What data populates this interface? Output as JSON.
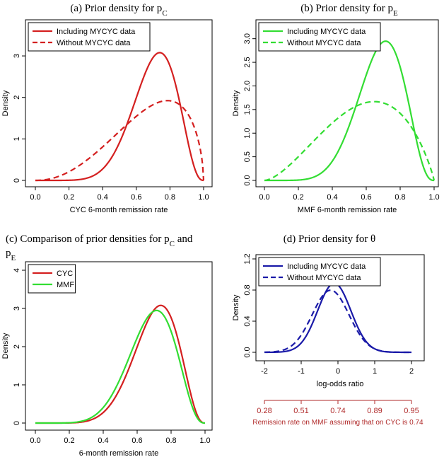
{
  "chart_data": [
    {
      "id": "a",
      "type": "line",
      "title": "(a) Prior density for p",
      "title_sub": "C",
      "title_after": "",
      "xlabel": "CYC 6-month remission rate",
      "ylabel": "Density",
      "xlim": [
        0,
        1
      ],
      "ylim": [
        0,
        3.7
      ],
      "x_ticks": [
        0.0,
        0.2,
        0.4,
        0.6,
        0.8,
        1.0
      ],
      "x_tick_labels": [
        "0.0",
        "0.2",
        "0.4",
        "0.6",
        "0.8",
        "1.0"
      ],
      "y_ticks": [
        0,
        1,
        2,
        3
      ],
      "y_tick_labels": [
        "0",
        "1",
        "2",
        "3"
      ],
      "legend_position": "top-left",
      "series": [
        {
          "name": "Including MYCYC data",
          "color": "#d42020",
          "dash": "solid",
          "curve": "beta",
          "a": 8.54,
          "b": 3.66
        },
        {
          "name": "Without MYCYC data",
          "color": "#d42020",
          "dash": "dashed",
          "curve": "beta",
          "a": 3.2,
          "b": 1.6
        }
      ]
    },
    {
      "id": "b",
      "type": "line",
      "title": "(b) Prior density for p",
      "title_sub": "E",
      "title_after": "",
      "xlabel": "MMF 6-month remission rate",
      "ylabel": "Density",
      "xlim": [
        0,
        1
      ],
      "ylim": [
        0,
        3.25
      ],
      "x_ticks": [
        0.0,
        0.2,
        0.4,
        0.6,
        0.8,
        1.0
      ],
      "x_tick_labels": [
        "0.0",
        "0.2",
        "0.4",
        "0.6",
        "0.8",
        "1.0"
      ],
      "y_ticks": [
        0.0,
        0.5,
        1.0,
        1.5,
        2.0,
        2.5,
        3.0
      ],
      "y_tick_labels": [
        "0.0",
        "0.5",
        "1.0",
        "1.5",
        "2.0",
        "2.5",
        "3.0"
      ],
      "legend_position": "top-left",
      "series": [
        {
          "name": "Including MYCYC data",
          "color": "#33dd33",
          "dash": "solid",
          "curve": "beta",
          "a": 8.0,
          "b": 3.8
        },
        {
          "name": "Without MYCYC data",
          "color": "#33dd33",
          "dash": "dashed",
          "curve": "beta",
          "a": 2.65,
          "b": 1.9
        }
      ]
    },
    {
      "id": "c",
      "type": "line",
      "title": "(c) Comparison of prior densities for p",
      "title_sub": "C",
      "title_after": " and",
      "title_line2": "p",
      "title_line2_sub": "E",
      "xlabel": "6-month remission rate",
      "ylabel": "Density",
      "xlim": [
        0,
        1
      ],
      "ylim": [
        0,
        4
      ],
      "x_ticks": [
        0.0,
        0.2,
        0.4,
        0.6,
        0.8,
        1.0
      ],
      "x_tick_labels": [
        "0.0",
        "0.2",
        "0.4",
        "0.6",
        "0.8",
        "1.0"
      ],
      "y_ticks": [
        0,
        1,
        2,
        3,
        4
      ],
      "y_tick_labels": [
        "0",
        "1",
        "2",
        "3",
        "4"
      ],
      "legend_position": "top-left",
      "series": [
        {
          "name": "CYC",
          "color": "#d42020",
          "dash": "solid",
          "curve": "beta",
          "a": 8.54,
          "b": 3.66
        },
        {
          "name": "MMF",
          "color": "#33dd33",
          "dash": "solid",
          "curve": "beta",
          "a": 8.0,
          "b": 3.8
        }
      ]
    },
    {
      "id": "d",
      "type": "line",
      "title": "(d) Prior density for θ",
      "title_sub": "",
      "title_after": "",
      "xlabel": "log-odds ratio",
      "ylabel": "Density",
      "xlim": [
        -2,
        2
      ],
      "ylim": [
        0,
        1.2
      ],
      "x_ticks": [
        -2,
        -1,
        0,
        1,
        2
      ],
      "x_tick_labels": [
        "-2",
        "-1",
        "0",
        "1",
        "2"
      ],
      "y_ticks": [
        0.0,
        0.4,
        0.8,
        1.2
      ],
      "y_tick_labels": [
        "0.0",
        "0.4",
        "0.8",
        "1.2"
      ],
      "legend_position": "top-left",
      "series": [
        {
          "name": "Including MYCYC data",
          "color": "#1a1aa8",
          "dash": "solid",
          "curve": "normal",
          "mean": -0.1,
          "sd": 0.45
        },
        {
          "name": "Without MYCYC data",
          "color": "#1a1aa8",
          "dash": "dashed",
          "curve": "normal",
          "mean": -0.2,
          "sd": 0.5
        }
      ],
      "secondary_axis": {
        "tick_labels": [
          "0.28",
          "0.51",
          "0.74",
          "0.89",
          "0.95"
        ],
        "label": "Remission rate on MMF assuming that on CYC is 0.74",
        "color": "#b02a2a"
      }
    }
  ]
}
